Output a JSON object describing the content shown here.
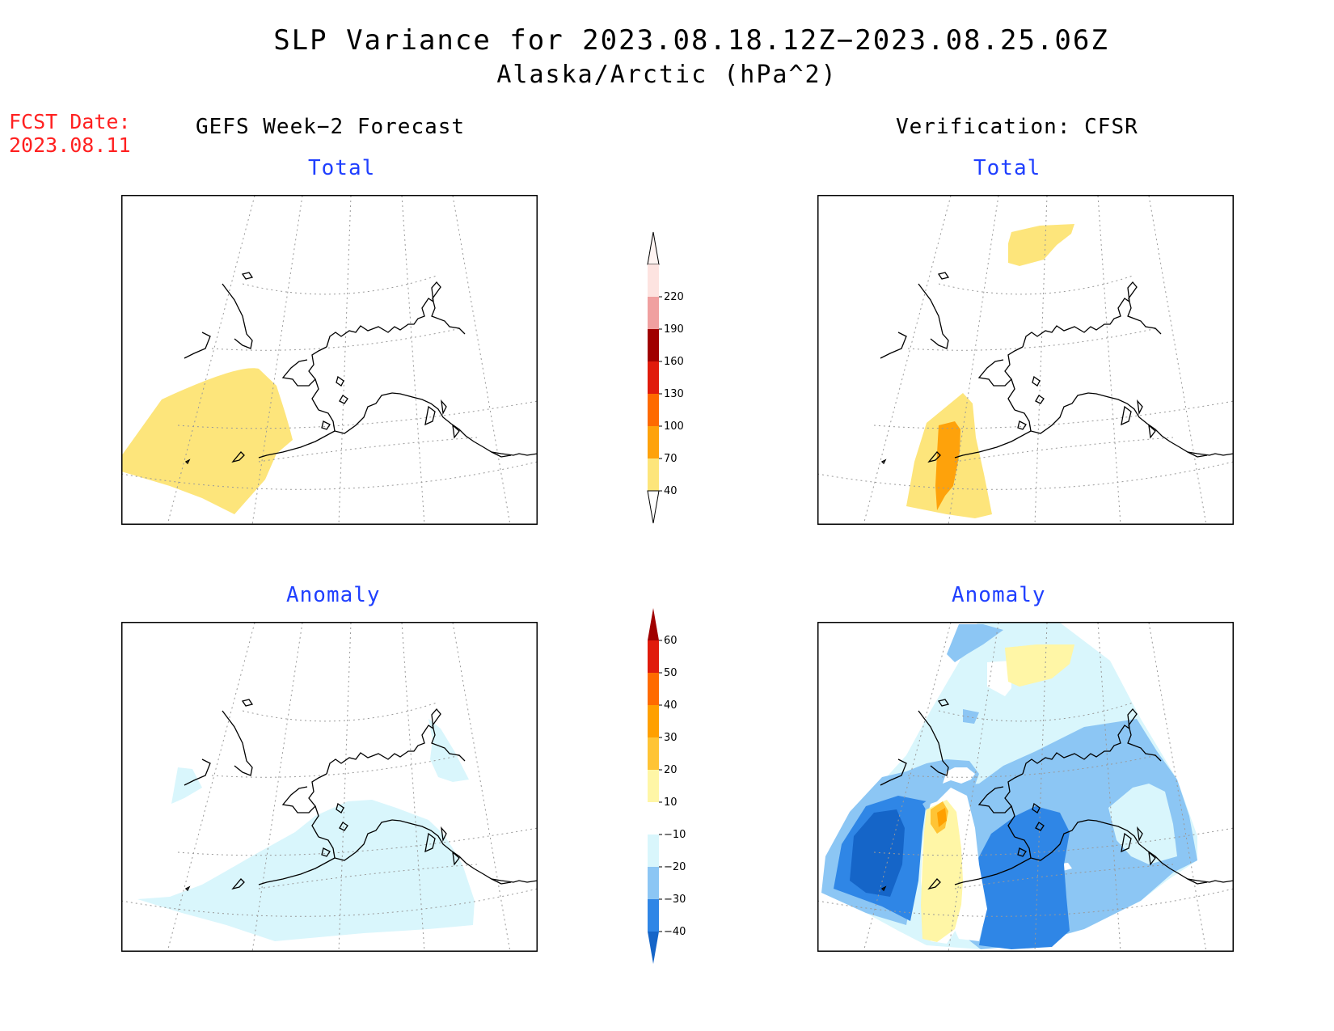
{
  "header": {
    "title": "SLP Variance for 2023.08.18.12Z−2023.08.25.06Z",
    "subtitle": "Alaska/Arctic (hPa^2)",
    "fcst_date_label": "FCST Date:",
    "fcst_date_value": "2023.08.11"
  },
  "columns": {
    "left": "GEFS Week−2 Forecast",
    "right": "Verification: CFSR"
  },
  "panels": {
    "total_label": "Total",
    "anomaly_label": "Anomaly"
  },
  "colorbar_total": {
    "labels": [
      "40",
      "70",
      "100",
      "130",
      "160",
      "190",
      "220"
    ],
    "colors": [
      "#fde57b",
      "#fea20b",
      "#fe6a00",
      "#e01b0c",
      "#a00000",
      "#f0a0a0",
      "#fde3e0"
    ]
  },
  "colorbar_anomaly": {
    "labels": [
      "−40",
      "−30",
      "−20",
      "−10",
      "10",
      "20",
      "30",
      "40",
      "50",
      "60"
    ],
    "colors": [
      "#1565c8",
      "#2f86e6",
      "#8cc6f4",
      "#d9f6fc",
      "#ffffff",
      "#fff6a6",
      "#ffc435",
      "#ffa000",
      "#ff6b00",
      "#e01b0c",
      "#a00000"
    ]
  }
}
